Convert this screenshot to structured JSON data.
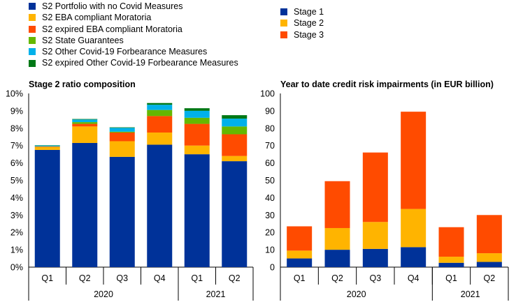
{
  "chart_data": [
    {
      "type": "bar",
      "stacked": true,
      "title": "Stage 2 ratio composition",
      "categories": [
        "Q1",
        "Q2",
        "Q3",
        "Q4",
        "Q1",
        "Q2"
      ],
      "groups": [
        {
          "label": "2020",
          "span": 4
        },
        {
          "label": "2021",
          "span": 2
        }
      ],
      "ylim": [
        0,
        10
      ],
      "yticks": [
        "0%",
        "1%",
        "2%",
        "3%",
        "4%",
        "5%",
        "6%",
        "7%",
        "8%",
        "9%",
        "10%"
      ],
      "series": [
        {
          "name": "S2 Portfolio with no Covid Measures",
          "color": "#003299",
          "values": [
            6.75,
            7.15,
            6.35,
            7.05,
            6.5,
            6.1
          ]
        },
        {
          "name": "S2 EBA compliant Moratoria",
          "color": "#FFB400",
          "values": [
            0.18,
            0.95,
            0.9,
            0.7,
            0.5,
            0.3
          ]
        },
        {
          "name": "S2 expired EBA compliant Moratoria",
          "color": "#FF4B00",
          "values": [
            0.02,
            0.15,
            0.5,
            0.95,
            1.25,
            1.25
          ]
        },
        {
          "name": "S2 State Guarantees",
          "color": "#65B800",
          "values": [
            0.0,
            0.1,
            0.05,
            0.35,
            0.35,
            0.45
          ]
        },
        {
          "name": "S2 Other Covid-19 Forbearance Measures",
          "color": "#00B1EA",
          "values": [
            0.05,
            0.15,
            0.22,
            0.3,
            0.4,
            0.45
          ]
        },
        {
          "name": "S2 expired Other Covid-19 Forbearance Measures",
          "color": "#007816",
          "values": [
            0.02,
            0.03,
            0.03,
            0.1,
            0.15,
            0.2
          ]
        }
      ]
    },
    {
      "type": "bar",
      "stacked": true,
      "title": "Year to date credit risk impairments (in EUR billion)",
      "categories": [
        "Q1",
        "Q2",
        "Q3",
        "Q4",
        "Q1",
        "Q2"
      ],
      "groups": [
        {
          "label": "2020",
          "span": 4
        },
        {
          "label": "2021",
          "span": 2
        }
      ],
      "ylim": [
        0,
        100
      ],
      "yticks": [
        "0",
        "10",
        "20",
        "30",
        "40",
        "50",
        "60",
        "70",
        "80",
        "90",
        "100"
      ],
      "series": [
        {
          "name": "Stage 1",
          "color": "#003299",
          "values": [
            5,
            10,
            10.5,
            11.5,
            2.5,
            3
          ]
        },
        {
          "name": "Stage 2",
          "color": "#FFB400",
          "values": [
            4.5,
            12.5,
            15.5,
            22,
            3.5,
            5
          ]
        },
        {
          "name": "Stage 3",
          "color": "#FF4B00",
          "values": [
            14,
            27,
            40,
            56,
            17,
            22
          ]
        }
      ]
    }
  ]
}
